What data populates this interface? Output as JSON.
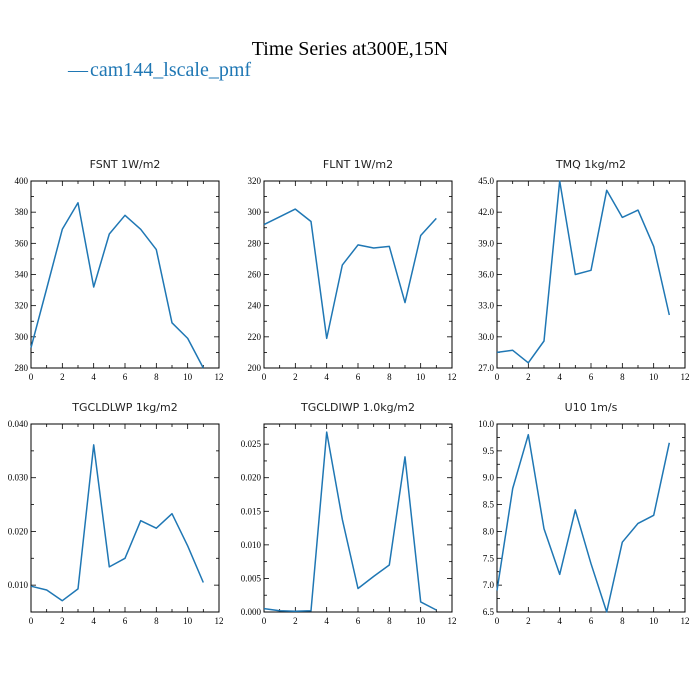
{
  "figure": {
    "title": "Time Series at300E,15N",
    "legend": {
      "marker": "—",
      "label": "cam144_lscale_pmf",
      "color": "#1f77b4"
    }
  },
  "chart_data": [
    {
      "type": "line",
      "title": "FSNT   1W/m2",
      "xlim": [
        0,
        12
      ],
      "ylim": [
        280,
        400
      ],
      "xticks": [
        0,
        2,
        4,
        6,
        8,
        10,
        12
      ],
      "yticks": [
        280,
        300,
        320,
        340,
        360,
        380,
        400
      ],
      "ytick_decimals": 0,
      "series": [
        {
          "name": "cam144_lscale_pmf",
          "color": "#1f77b4",
          "x": [
            0,
            1,
            2,
            3,
            4,
            5,
            6,
            7,
            8,
            9,
            10,
            11
          ],
          "y": [
            293,
            331,
            369,
            386,
            332,
            366,
            378,
            369,
            356,
            309,
            299,
            280
          ]
        }
      ]
    },
    {
      "type": "line",
      "title": "FLNT   1W/m2",
      "xlim": [
        0,
        12
      ],
      "ylim": [
        200,
        320
      ],
      "xticks": [
        0,
        2,
        4,
        6,
        8,
        10,
        12
      ],
      "yticks": [
        200,
        220,
        240,
        260,
        280,
        300,
        320
      ],
      "ytick_decimals": 0,
      "series": [
        {
          "name": "cam144_lscale_pmf",
          "color": "#1f77b4",
          "x": [
            0,
            1,
            2,
            3,
            4,
            5,
            6,
            7,
            8,
            9,
            10,
            11
          ],
          "y": [
            292,
            297,
            302,
            294,
            219,
            266,
            279,
            277,
            278,
            242,
            285,
            296
          ]
        }
      ]
    },
    {
      "type": "line",
      "title": "TMQ   1kg/m2",
      "xlim": [
        0,
        12
      ],
      "ylim": [
        27,
        45
      ],
      "xticks": [
        0,
        2,
        4,
        6,
        8,
        10,
        12
      ],
      "yticks": [
        27,
        30,
        33,
        36,
        39,
        42,
        45
      ],
      "ytick_decimals": 1,
      "series": [
        {
          "name": "cam144_lscale_pmf",
          "color": "#1f77b4",
          "x": [
            0,
            1,
            2,
            3,
            4,
            5,
            6,
            7,
            8,
            9,
            10,
            11
          ],
          "y": [
            28.5,
            28.7,
            27.5,
            29.6,
            45.0,
            36.0,
            36.4,
            44.1,
            41.5,
            42.2,
            38.7,
            32.1
          ]
        }
      ]
    },
    {
      "type": "line",
      "title": "TGCLDLWP   1kg/m2",
      "xlim": [
        0,
        12
      ],
      "ylim": [
        0.005,
        0.04
      ],
      "xticks": [
        0,
        2,
        4,
        6,
        8,
        10,
        12
      ],
      "yticks": [
        0.01,
        0.02,
        0.03,
        0.04
      ],
      "ytick_decimals": 3,
      "series": [
        {
          "name": "cam144_lscale_pmf",
          "color": "#1f77b4",
          "x": [
            0,
            1,
            2,
            3,
            4,
            5,
            6,
            7,
            8,
            9,
            10,
            11
          ],
          "y": [
            0.0098,
            0.0091,
            0.0071,
            0.0093,
            0.0361,
            0.0134,
            0.015,
            0.022,
            0.0206,
            0.0233,
            0.0173,
            0.0105
          ]
        }
      ]
    },
    {
      "type": "line",
      "title": "TGCLDIWP   1.0kg/m2",
      "xlim": [
        0,
        12
      ],
      "ylim": [
        0.0,
        0.028
      ],
      "xticks": [
        0,
        2,
        4,
        6,
        8,
        10,
        12
      ],
      "yticks": [
        0.0,
        0.005,
        0.01,
        0.015,
        0.02,
        0.025
      ],
      "ytick_decimals": 3,
      "series": [
        {
          "name": "cam144_lscale_pmf",
          "color": "#1f77b4",
          "x": [
            0,
            1,
            2,
            3,
            4,
            5,
            6,
            7,
            8,
            9,
            10,
            11
          ],
          "y": [
            0.0005,
            0.0002,
            0.0001,
            0.0002,
            0.0268,
            0.0138,
            0.0035,
            0.0053,
            0.007,
            0.0231,
            0.0015,
            0.0003
          ]
        }
      ]
    },
    {
      "type": "line",
      "title": "U10   1m/s",
      "xlim": [
        0,
        12
      ],
      "ylim": [
        6.5,
        10.0
      ],
      "xticks": [
        0,
        2,
        4,
        6,
        8,
        10,
        12
      ],
      "yticks": [
        6.5,
        7.0,
        7.5,
        8.0,
        8.5,
        9.0,
        9.5,
        10.0
      ],
      "ytick_decimals": 1,
      "series": [
        {
          "name": "cam144_lscale_pmf",
          "color": "#1f77b4",
          "x": [
            0,
            1,
            2,
            3,
            4,
            5,
            6,
            7,
            8,
            9,
            10,
            11
          ],
          "y": [
            6.9,
            8.8,
            9.8,
            8.05,
            7.2,
            8.4,
            7.4,
            6.5,
            7.8,
            8.15,
            8.3,
            9.65
          ]
        }
      ]
    }
  ]
}
